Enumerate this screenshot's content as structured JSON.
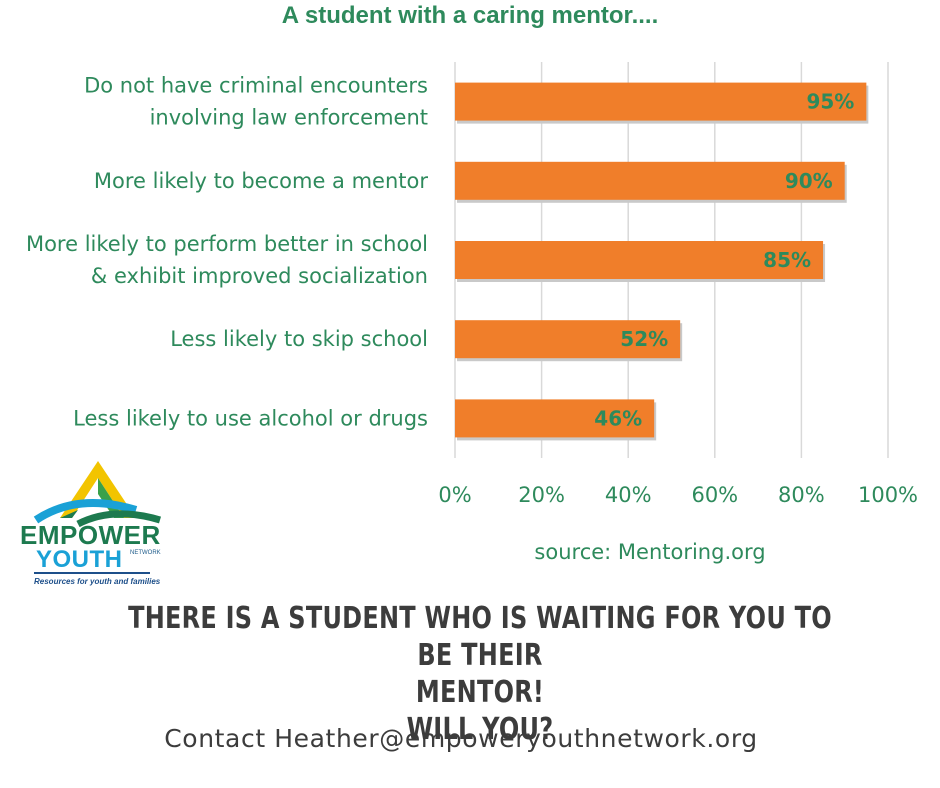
{
  "chart_data": {
    "type": "bar",
    "orientation": "horizontal",
    "title": "A student with a caring mentor....",
    "categories": [
      [
        "Do not have criminal encounters",
        "involving law enforcement"
      ],
      [
        "More likely to become a mentor"
      ],
      [
        "More likely to perform better in school",
        "& exhibit improved socialization"
      ],
      [
        "Less likely to skip school"
      ],
      [
        "Less likely to use alcohol or drugs"
      ]
    ],
    "values": [
      95,
      90,
      85,
      52,
      46
    ],
    "data_labels": [
      "95%",
      "90%",
      "85%",
      "52%",
      "46%"
    ],
    "x_ticks": [
      0,
      20,
      40,
      60,
      80,
      100
    ],
    "x_tick_labels": [
      "0%",
      "20%",
      "40%",
      "60%",
      "80%",
      "100%"
    ],
    "xlim": [
      0,
      100
    ],
    "xlabel": "",
    "ylabel": "",
    "grid": "vertical",
    "legend": "none",
    "bar_color": "#f07e2a",
    "text_color": "#2e8a5c"
  },
  "source": "source: Mentoring.org",
  "logo": {
    "line1": "EMPOWER",
    "line2": "YOUTH",
    "network": "NETWORK",
    "tagline": "Resources for youth and families"
  },
  "cta": {
    "line1": "THERE IS A STUDENT WHO IS WAITING FOR YOU TO BE THEIR",
    "line2": "MENTOR!",
    "line3": "WILL YOU?"
  },
  "contact": "Contact Heather@empoweryouthnetwork.org"
}
